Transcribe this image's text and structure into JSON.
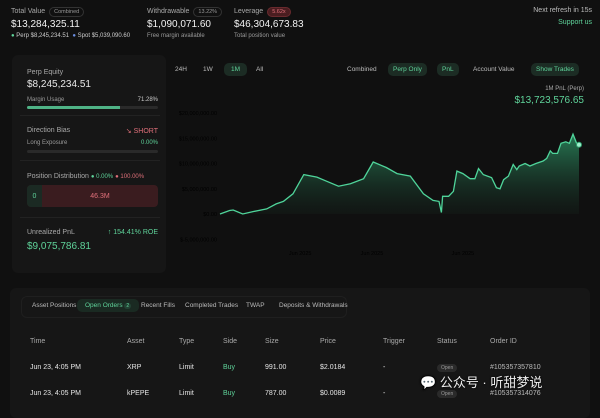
{
  "header": {
    "total_value": {
      "label": "Total Value",
      "badge": "Combined",
      "value": "$13,284,325.11",
      "perp_label": "Perp",
      "perp_value": "$8,245,234.51",
      "spot_label": "Spot",
      "spot_value": "$5,039,090.60"
    },
    "withdrawable": {
      "label": "Withdrawable",
      "badge": "13.22%",
      "value": "$1,090,071.60",
      "sub": "Free margin available"
    },
    "leverage": {
      "label": "Leverage",
      "badge": "5.62x",
      "value": "$46,304,673.83",
      "sub": "Total position value"
    },
    "refresh": "Next refresh in 15s",
    "support": "Support us"
  },
  "left": {
    "perp_equity_label": "Perp Equity",
    "perp_equity": "$8,245,234.51",
    "margin_label": "Margin Usage",
    "margin_value": "71.28%",
    "margin_fraction": 0.7128,
    "bias_label": "Direction Bias",
    "bias_value": "SHORT",
    "long_label": "Long Exposure",
    "long_value": "0.00%",
    "long_fraction": 0,
    "dist_label": "Position Distribution",
    "dist_long": "0.00%",
    "dist_short": "100.00%",
    "dist_long_amount": "0",
    "dist_short_amount": "46.3M",
    "upnl_label": "Unrealized PnL",
    "upnl_roe": "154.41% ROE",
    "upnl_value": "$9,075,786.81"
  },
  "chart_controls": {
    "ranges": [
      "24H",
      "1W",
      "1M",
      "All"
    ],
    "active_range": "1M",
    "modes": [
      "Combined",
      "Perp Only"
    ],
    "active_mode": "Perp Only",
    "metrics": [
      "PnL",
      "Account Value"
    ],
    "active_metric": "PnL",
    "show_trades": "Show Trades",
    "summary_label": "1M PnL (Perp)",
    "summary_value": "$13,723,576.65"
  },
  "chart_data": {
    "type": "area",
    "title": "1M PnL (Perp)",
    "xlabel": "",
    "ylabel": "",
    "ylim": [
      -5000000,
      20000000
    ],
    "yticks": [
      20000000,
      15000000,
      10000000,
      5000000,
      0,
      -5000000
    ],
    "ytick_labels": [
      "$20,000,000.00",
      "$15,000,000.00",
      "$10,000,000.00",
      "$5,000,000.00",
      "$0.00",
      "$-5,000,000.00"
    ],
    "xlim": [
      0,
      30
    ],
    "xticks": [
      6.7,
      12.7,
      20.3
    ],
    "xtick_labels": [
      "Jun 2025",
      "Jun 2025",
      "Jun 2025"
    ],
    "color": "#4fd49a",
    "x": [
      0,
      0.8,
      1.1,
      1.9,
      2.8,
      3.9,
      4.7,
      5.3,
      6.1,
      7.0,
      8.1,
      8.9,
      9.9,
      10.9,
      12.0,
      12.8,
      13.9,
      14.8,
      15.9,
      17.0,
      17.8,
      18.3,
      18.5,
      18.6,
      19.1,
      19.5,
      19.8,
      20.3,
      20.9,
      21.3,
      21.6,
      22.0,
      22.7,
      23.1,
      23.4,
      23.7,
      24.1,
      24.5,
      24.8,
      25.0,
      25.5,
      25.9,
      26.4,
      27.0,
      27.3,
      27.6,
      27.8,
      28.2,
      28.5,
      28.9,
      29.2,
      29.5,
      29.8,
      30
    ],
    "y": [
      0,
      0.7,
      0.8,
      0,
      0.5,
      1.0,
      2.0,
      2.5,
      4.0,
      7.8,
      7.3,
      6.5,
      5.5,
      6.0,
      7.0,
      10.3,
      9.2,
      8.0,
      7.5,
      4.0,
      2.7,
      2.5,
      0.3,
      3.5,
      3.5,
      4.5,
      8.5,
      8.0,
      7.0,
      7.0,
      9.0,
      7.8,
      7.2,
      5.2,
      5.0,
      6.8,
      7.5,
      9.8,
      8.8,
      9.5,
      10.0,
      9.5,
      10.0,
      10.5,
      11.0,
      12.5,
      12.0,
      12.0,
      14.0,
      14.3,
      14.0,
      15.8,
      14.0,
      13.72
    ],
    "y_unit": "millions USD"
  },
  "tabs": {
    "items": [
      "Asset Positions",
      "Open Orders",
      "Recent Fills",
      "Completed Trades",
      "TWAP",
      "Deposits & Withdrawals"
    ],
    "active": "Open Orders",
    "open_orders_count": "2"
  },
  "table": {
    "headers": [
      "Time",
      "Asset",
      "Type",
      "Side",
      "Size",
      "Price",
      "Trigger",
      "Status",
      "Order ID"
    ],
    "rows": [
      [
        "Jun 23, 4:05 PM",
        "XRP",
        "Limit",
        "Buy",
        "991.00",
        "$2.0184",
        "-",
        "Open",
        "#105357357810"
      ],
      [
        "Jun 23, 4:05 PM",
        "kPEPE",
        "Limit",
        "Buy",
        "787.00",
        "$0.0089",
        "-",
        "Open",
        "#105357314076"
      ]
    ]
  },
  "watermark": "公众号 · 听甜梦说"
}
